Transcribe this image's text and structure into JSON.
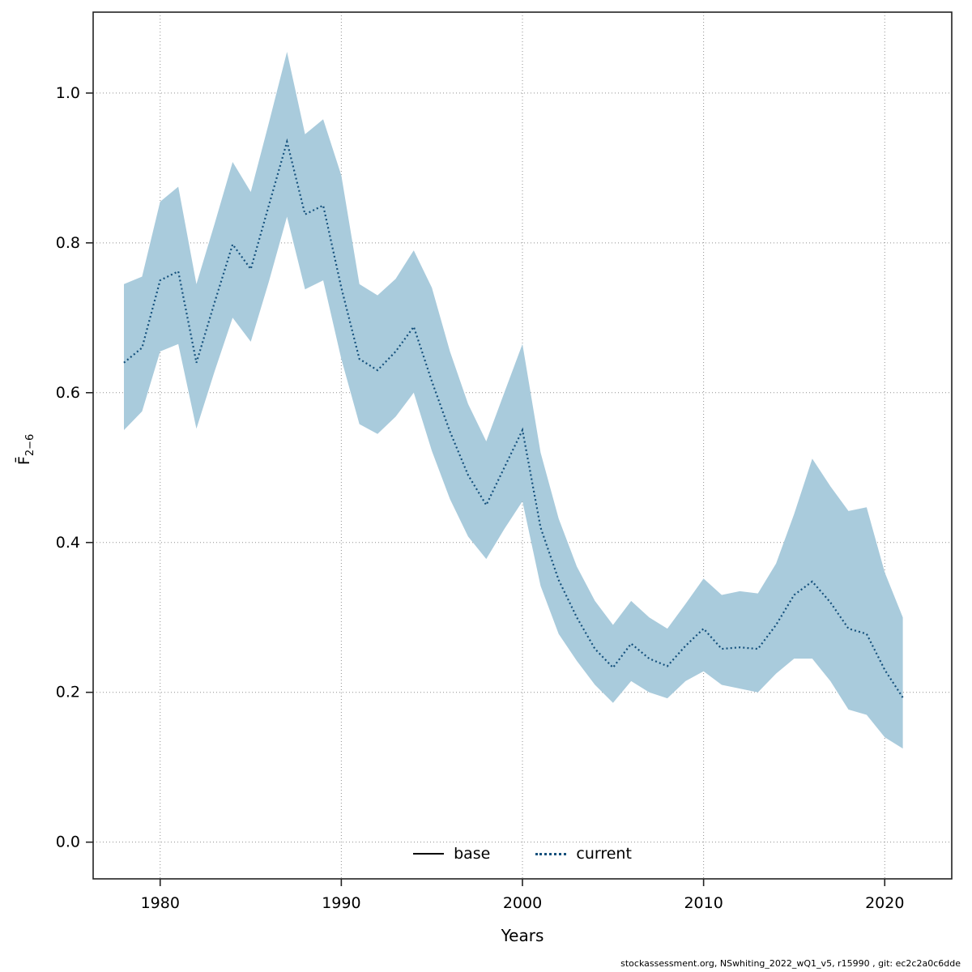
{
  "chart_data": {
    "type": "line",
    "title": "",
    "xlabel": "Years",
    "ylabel_main": "F̄",
    "ylabel_sub": "2−6",
    "x": [
      1978,
      1979,
      1980,
      1981,
      1982,
      1983,
      1984,
      1985,
      1986,
      1987,
      1988,
      1989,
      1990,
      1991,
      1992,
      1993,
      1994,
      1995,
      1996,
      1997,
      1998,
      1999,
      2000,
      2001,
      2002,
      2003,
      2004,
      2005,
      2006,
      2007,
      2008,
      2009,
      2010,
      2011,
      2012,
      2013,
      2014,
      2015,
      2016,
      2017,
      2018,
      2019,
      2020,
      2021
    ],
    "series": [
      {
        "name": "current",
        "style": "dotted",
        "color": "#14507c",
        "values": [
          0.64,
          0.66,
          0.75,
          0.762,
          0.64,
          0.72,
          0.798,
          0.765,
          0.85,
          0.935,
          0.838,
          0.85,
          0.74,
          0.645,
          0.63,
          0.655,
          0.688,
          0.615,
          0.548,
          0.49,
          0.45,
          0.5,
          0.55,
          0.42,
          0.35,
          0.3,
          0.258,
          0.233,
          0.265,
          0.245,
          0.235,
          0.262,
          0.285,
          0.258,
          0.26,
          0.258,
          0.29,
          0.33,
          0.348,
          0.32,
          0.285,
          0.278,
          0.23,
          0.193
        ]
      }
    ],
    "band": {
      "name": "confidence-interval",
      "color": "#a9cbdc",
      "upper": [
        0.745,
        0.755,
        0.855,
        0.875,
        0.745,
        0.825,
        0.908,
        0.868,
        0.96,
        1.055,
        0.945,
        0.965,
        0.89,
        0.745,
        0.73,
        0.752,
        0.79,
        0.74,
        0.655,
        0.585,
        0.535,
        0.6,
        0.665,
        0.52,
        0.432,
        0.368,
        0.322,
        0.29,
        0.322,
        0.3,
        0.285,
        0.318,
        0.352,
        0.33,
        0.335,
        0.332,
        0.372,
        0.438,
        0.512,
        0.475,
        0.442,
        0.447,
        0.36,
        0.3
      ],
      "lower": [
        0.55,
        0.575,
        0.655,
        0.665,
        0.552,
        0.628,
        0.7,
        0.668,
        0.748,
        0.835,
        0.738,
        0.75,
        0.645,
        0.558,
        0.545,
        0.568,
        0.6,
        0.522,
        0.458,
        0.408,
        0.378,
        0.418,
        0.455,
        0.342,
        0.278,
        0.242,
        0.21,
        0.186,
        0.215,
        0.2,
        0.192,
        0.215,
        0.228,
        0.21,
        0.205,
        0.2,
        0.225,
        0.245,
        0.245,
        0.215,
        0.177,
        0.17,
        0.14,
        0.125
      ]
    },
    "x_ticks": [
      1980,
      1990,
      2000,
      2010,
      2020
    ],
    "y_ticks": [
      "0.0",
      "0.2",
      "0.4",
      "0.6",
      "0.8",
      "1.0"
    ],
    "xlim": [
      1976.3,
      2023.7
    ],
    "ylim": [
      -0.049,
      1.108
    ],
    "grid": true,
    "legend": {
      "position": "bottom-center",
      "entries": [
        {
          "label": "base",
          "style": "solid",
          "color": "#000000"
        },
        {
          "label": "current",
          "style": "dotted",
          "color": "#14507c"
        }
      ]
    }
  },
  "footer": {
    "text": "stockassessment.org, NSwhiting_2022_wQ1_v5, r15990 , git: ec2c2a0c6dde"
  }
}
